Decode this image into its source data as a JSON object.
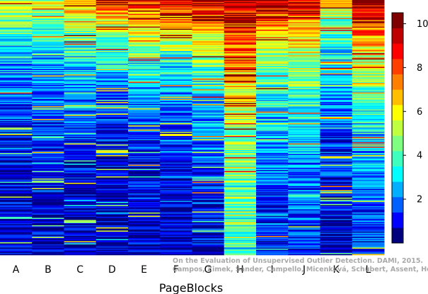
{
  "chart_data": {
    "type": "heatmap",
    "title": "",
    "xlabel": "PageBlocks",
    "ylabel": "",
    "categories": [
      "A",
      "B",
      "C",
      "D",
      "E",
      "F",
      "G",
      "H",
      "I",
      "J",
      "K",
      "L"
    ],
    "value_range": [
      0,
      10.5
    ],
    "colorbar": {
      "ticks": [
        2,
        4,
        6,
        8,
        10
      ],
      "labels": [
        "2",
        "4",
        "6",
        "8",
        "10"
      ],
      "colors": [
        "#00007f",
        "#0000ff",
        "#005fff",
        "#00afff",
        "#00ffff",
        "#3fffbf",
        "#7fff7f",
        "#bfff3f",
        "#ffff00",
        "#ffbf00",
        "#ff7f00",
        "#ff3f00",
        "#ff0000",
        "#bf0000",
        "#7f0000"
      ]
    },
    "column_profiles": [
      {
        "name": "A",
        "top": 6.5,
        "decay": 3.0,
        "floor": 0.3
      },
      {
        "name": "B",
        "top": 6.0,
        "decay": 2.6,
        "floor": 0.3
      },
      {
        "name": "C",
        "top": 8.0,
        "decay": 3.2,
        "floor": 0.3
      },
      {
        "name": "D",
        "top": 9.5,
        "decay": 4.0,
        "floor": 0.4
      },
      {
        "name": "E",
        "top": 9.5,
        "decay": 3.5,
        "floor": 0.5
      },
      {
        "name": "F",
        "top": 10.0,
        "decay": 3.6,
        "floor": 0.4
      },
      {
        "name": "G",
        "top": 10.0,
        "decay": 2.8,
        "floor": 0.5
      },
      {
        "name": "H",
        "top": 10.2,
        "decay": 1.8,
        "floor": 2.8
      },
      {
        "name": "I",
        "top": 10.0,
        "decay": 2.4,
        "floor": 0.6
      },
      {
        "name": "J",
        "top": 9.5,
        "decay": 2.2,
        "floor": 0.8
      },
      {
        "name": "K",
        "top": 6.5,
        "decay": 2.6,
        "floor": 0.6
      },
      {
        "name": "L",
        "top": 10.5,
        "decay": 2.2,
        "floor": 0.6
      }
    ]
  },
  "watermark": {
    "line1": "On the Evaluation of Unsupervised Outlier Detection. DAMI, 2015.",
    "line2": "Campos, Zimek, Sander, Campello, Micenková, Schubert, Assent, Houle"
  }
}
